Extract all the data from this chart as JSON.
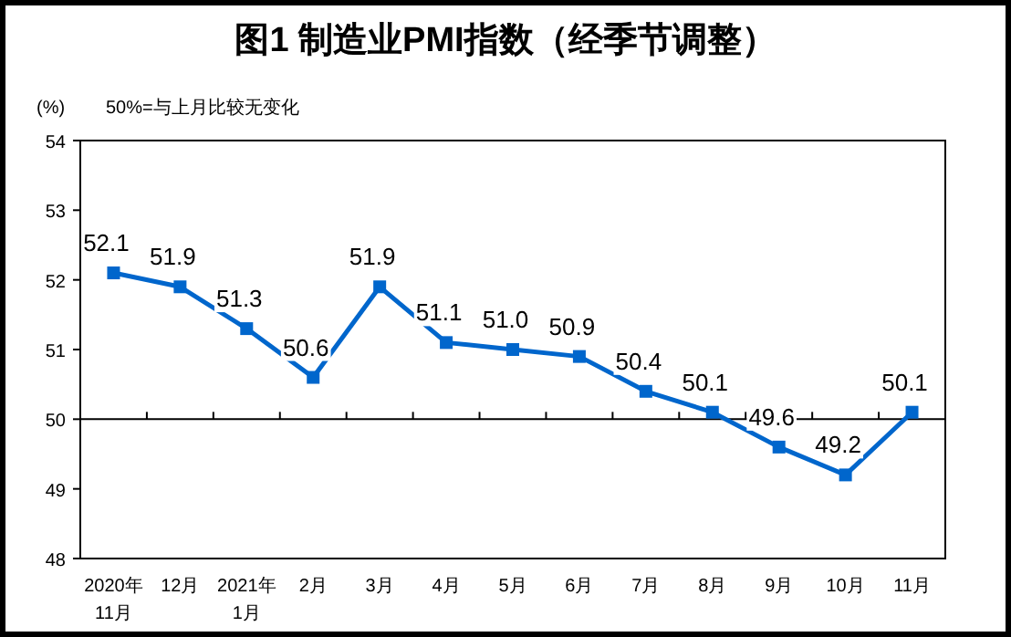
{
  "chart_data": {
    "type": "line",
    "title": "图1 制造业PMI指数（经季节调整）",
    "ylabel": "(%)",
    "annotations": [
      "50%=与上月比较无变化"
    ],
    "categories": [
      "2020年\n11月",
      "12月",
      "2021年\n1月",
      "2月",
      "3月",
      "4月",
      "5月",
      "6月",
      "7月",
      "8月",
      "9月",
      "10月",
      "11月"
    ],
    "series": [
      {
        "color": "#0066cc",
        "values": [
          52.1,
          51.9,
          51.3,
          50.6,
          51.9,
          51.1,
          51.0,
          50.9,
          50.4,
          50.1,
          49.6,
          49.2,
          50.1
        ]
      }
    ],
    "ylim": [
      48,
      54
    ],
    "yticks": [
      48,
      49,
      50,
      51,
      52,
      53,
      54
    ],
    "ref_lines": [
      {
        "axis": "y",
        "value": 50,
        "color": "#000000"
      }
    ],
    "value_labels": [
      "52.1",
      "51.9",
      "51.3",
      "50.6",
      "51.9",
      "51.1",
      "51.0",
      "50.9",
      "50.4",
      "50.1",
      "49.6",
      "49.2",
      "50.1"
    ],
    "marker": "square",
    "line_style": "solid",
    "grid": false
  }
}
